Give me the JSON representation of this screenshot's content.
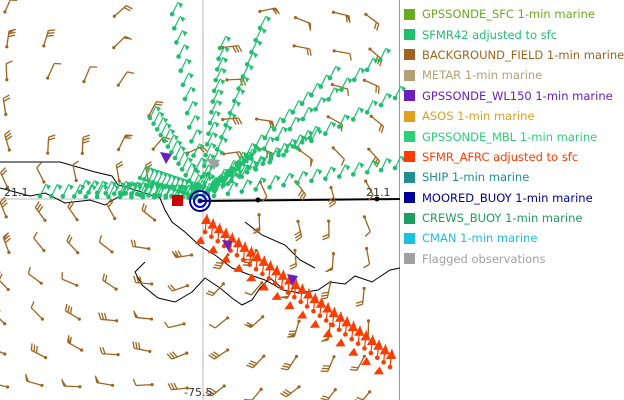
{
  "map": {
    "labels": {
      "lat_left": "21.1",
      "lat_right": "21.1",
      "lon_bottom": "-75.5"
    }
  },
  "legend": {
    "items": [
      {
        "label": "GPSSONDE_SFC 1-min marine",
        "color": "#6aaa1e"
      },
      {
        "label": "SFMR42 adjusted to sfc",
        "color": "#1fbf6f"
      },
      {
        "label": "BACKGROUND_FIELD 1-min marine",
        "color": "#a0641e"
      },
      {
        "label": "METAR 1-min marine",
        "color": "#b4a078"
      },
      {
        "label": "GPSSONDE_WL150 1-min marine",
        "color": "#6a1fbf"
      },
      {
        "label": "ASOS 1-min marine",
        "color": "#e0a020"
      },
      {
        "label": "GPSSONDE_MBL 1-min marine",
        "color": "#2ecf78"
      },
      {
        "label": "SFMR_AFRC adjusted to sfc",
        "color": "#ff3c00"
      },
      {
        "label": "SHIP 1-min marine",
        "color": "#1f8f8f"
      },
      {
        "label": "MOORED_BUOY 1-min marine",
        "color": "#000099"
      },
      {
        "label": "CREWS_BUOY 1-min marine",
        "color": "#1f9f5f"
      },
      {
        "label": "CMAN 1-min marine",
        "color": "#1fbfe0"
      },
      {
        "label": "Flagged observations",
        "color": "#a0a0a0"
      }
    ]
  }
}
